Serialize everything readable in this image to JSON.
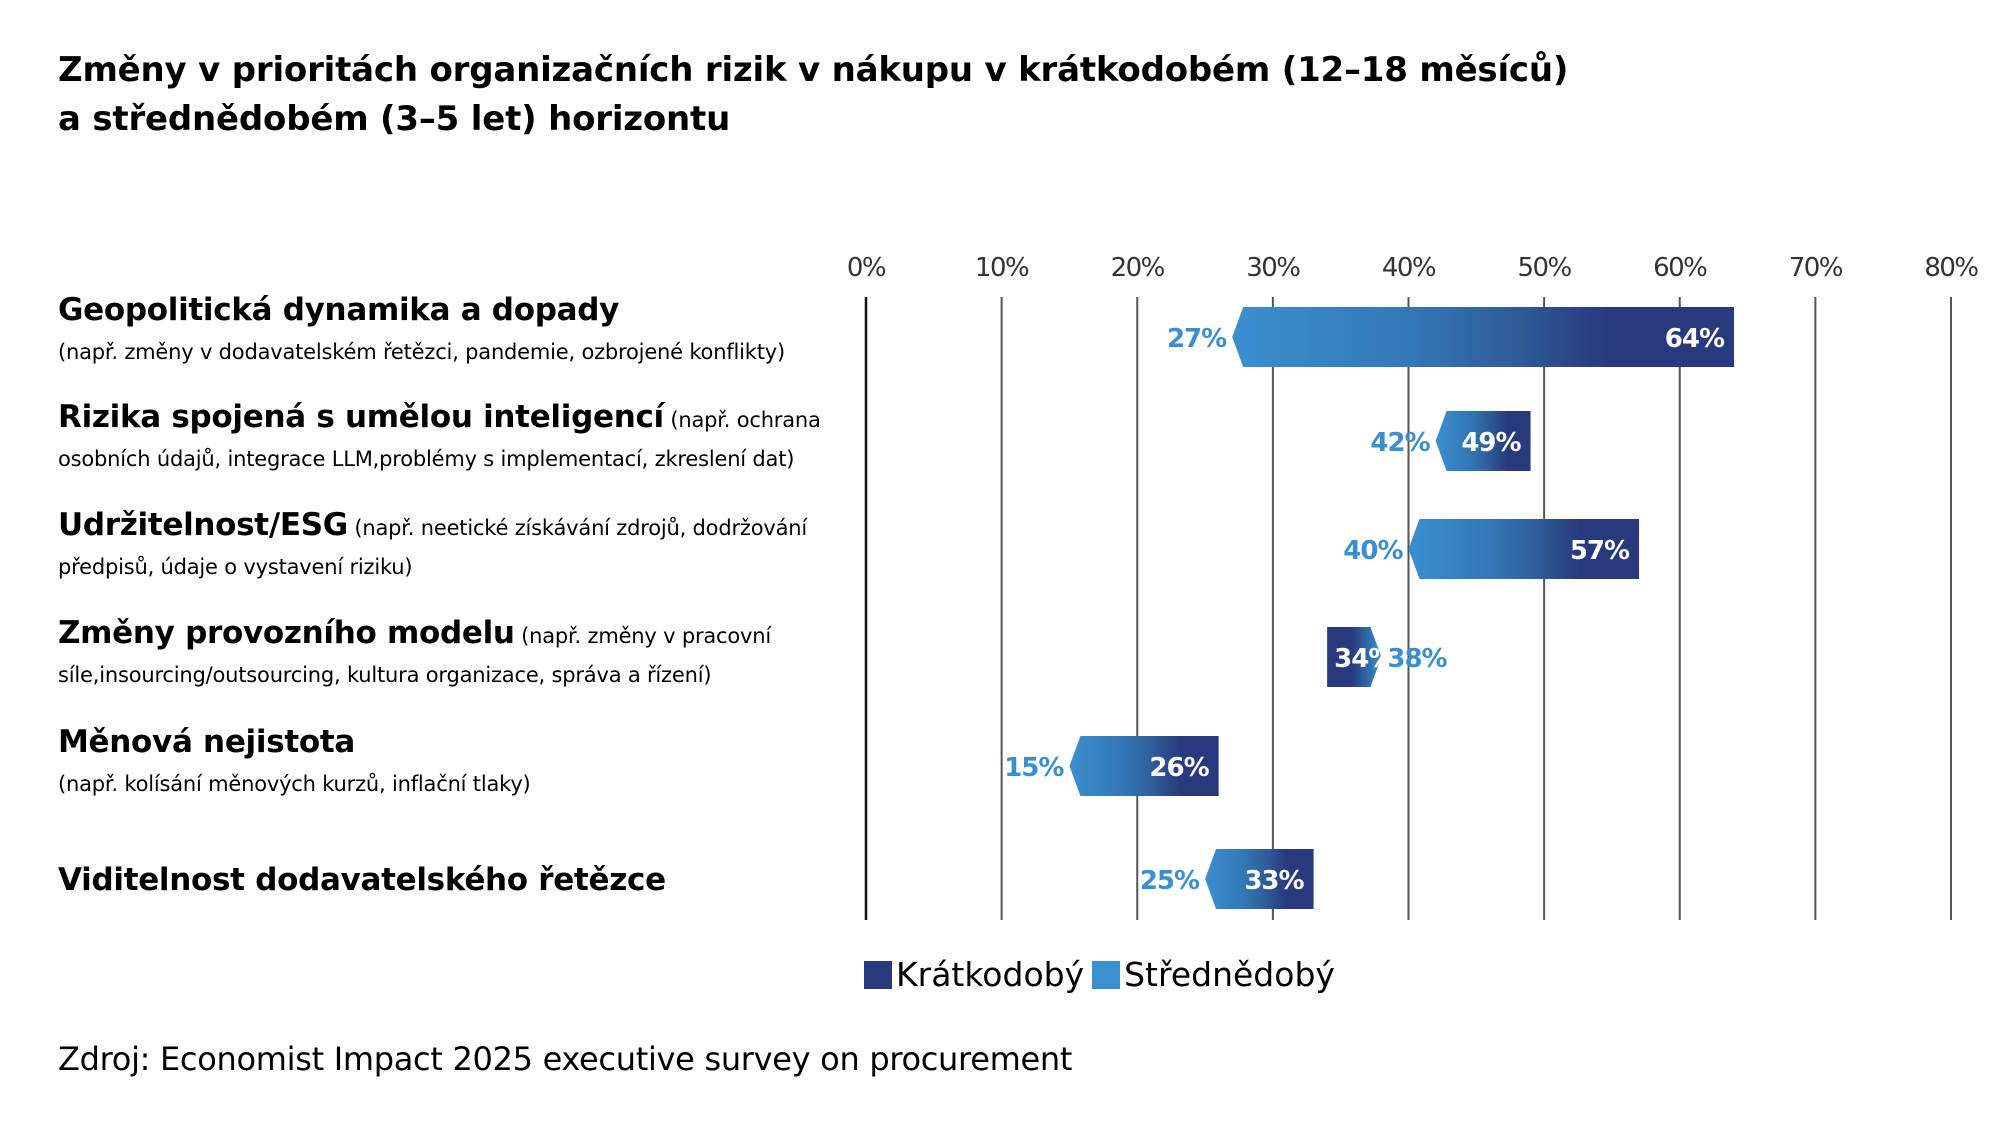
{
  "chart_data": {
    "type": "bar",
    "subtype": "range-arrow",
    "title": "Změny v prioritách organizačních rizik v nákupu v krátkodobém (12–18 měsíců) a střednědobém (3–5 let) horizontu",
    "title_lines": [
      "Změny v prioritách organizačních rizik v nákupu v krátkodobém (12–18 měsíců)",
      "a střednědobém (3–5 let) horizontu"
    ],
    "xlabel": "",
    "ylabel": "",
    "xlim": [
      0,
      80
    ],
    "x_ticks": [
      0,
      10,
      20,
      30,
      40,
      50,
      60,
      70,
      80
    ],
    "x_tick_labels": [
      "0%",
      "10%",
      "20%",
      "30%",
      "40%",
      "50%",
      "60%",
      "70%",
      "80%"
    ],
    "grid": "vertical",
    "axis_position": "top",
    "categories": [
      {
        "head": "Geopolitická dynamika a dopady",
        "inline": "",
        "line2": "(např. změny v dodavatelském řetězci, pandemie, ozbrojené konflikty)"
      },
      {
        "head": "Rizika spojená s umělou inteligencí",
        "inline": " (např. ochrana",
        "line2": "osobních údajů, integrace LLM,problémy s implementací, zkreslení dat)"
      },
      {
        "head": "Udržitelnost/ESG",
        "inline": " (např. neetické získávání zdrojů, dodržování",
        "line2": "předpisů, údaje o vystavení riziku)"
      },
      {
        "head": "Změny provozního modelu",
        "inline": " (např. změny v pracovní",
        "line2": "síle,insourcing/outsourcing, kultura organizace, správa a řízení)"
      },
      {
        "head": "Měnová nejistota",
        "inline": "",
        "line2": "(např. kolísání měnových kurzů, inflační tlaky)"
      },
      {
        "head": "Viditelnost dodavatelského řetězce",
        "inline": "",
        "line2": ""
      }
    ],
    "series": [
      {
        "name": "Krátkodobý",
        "color": "#28397d",
        "values": [
          64,
          49,
          57,
          34,
          26,
          33
        ]
      },
      {
        "name": "Střednědobý",
        "color": "#3a8fd0",
        "values": [
          27,
          42,
          40,
          38,
          15,
          25
        ]
      }
    ],
    "value_labels": {
      "Krátkodobý": [
        "64%",
        "49%",
        "57%",
        "34%",
        "26%",
        "33%"
      ],
      "Střednědobý": [
        "27%",
        "42%",
        "40%",
        "38%",
        "15%",
        "25%"
      ]
    },
    "legend": {
      "position": "bottom-center",
      "entries": [
        "Krátkodobý",
        "Střednědobý"
      ]
    },
    "source": "Zdroj: Economist Impact 2025 executive survey on procurement"
  },
  "colors": {
    "short_term": "#28397d",
    "mid_term": "#3a8fd0",
    "grid": "#555555",
    "zero_line": "#111111"
  }
}
